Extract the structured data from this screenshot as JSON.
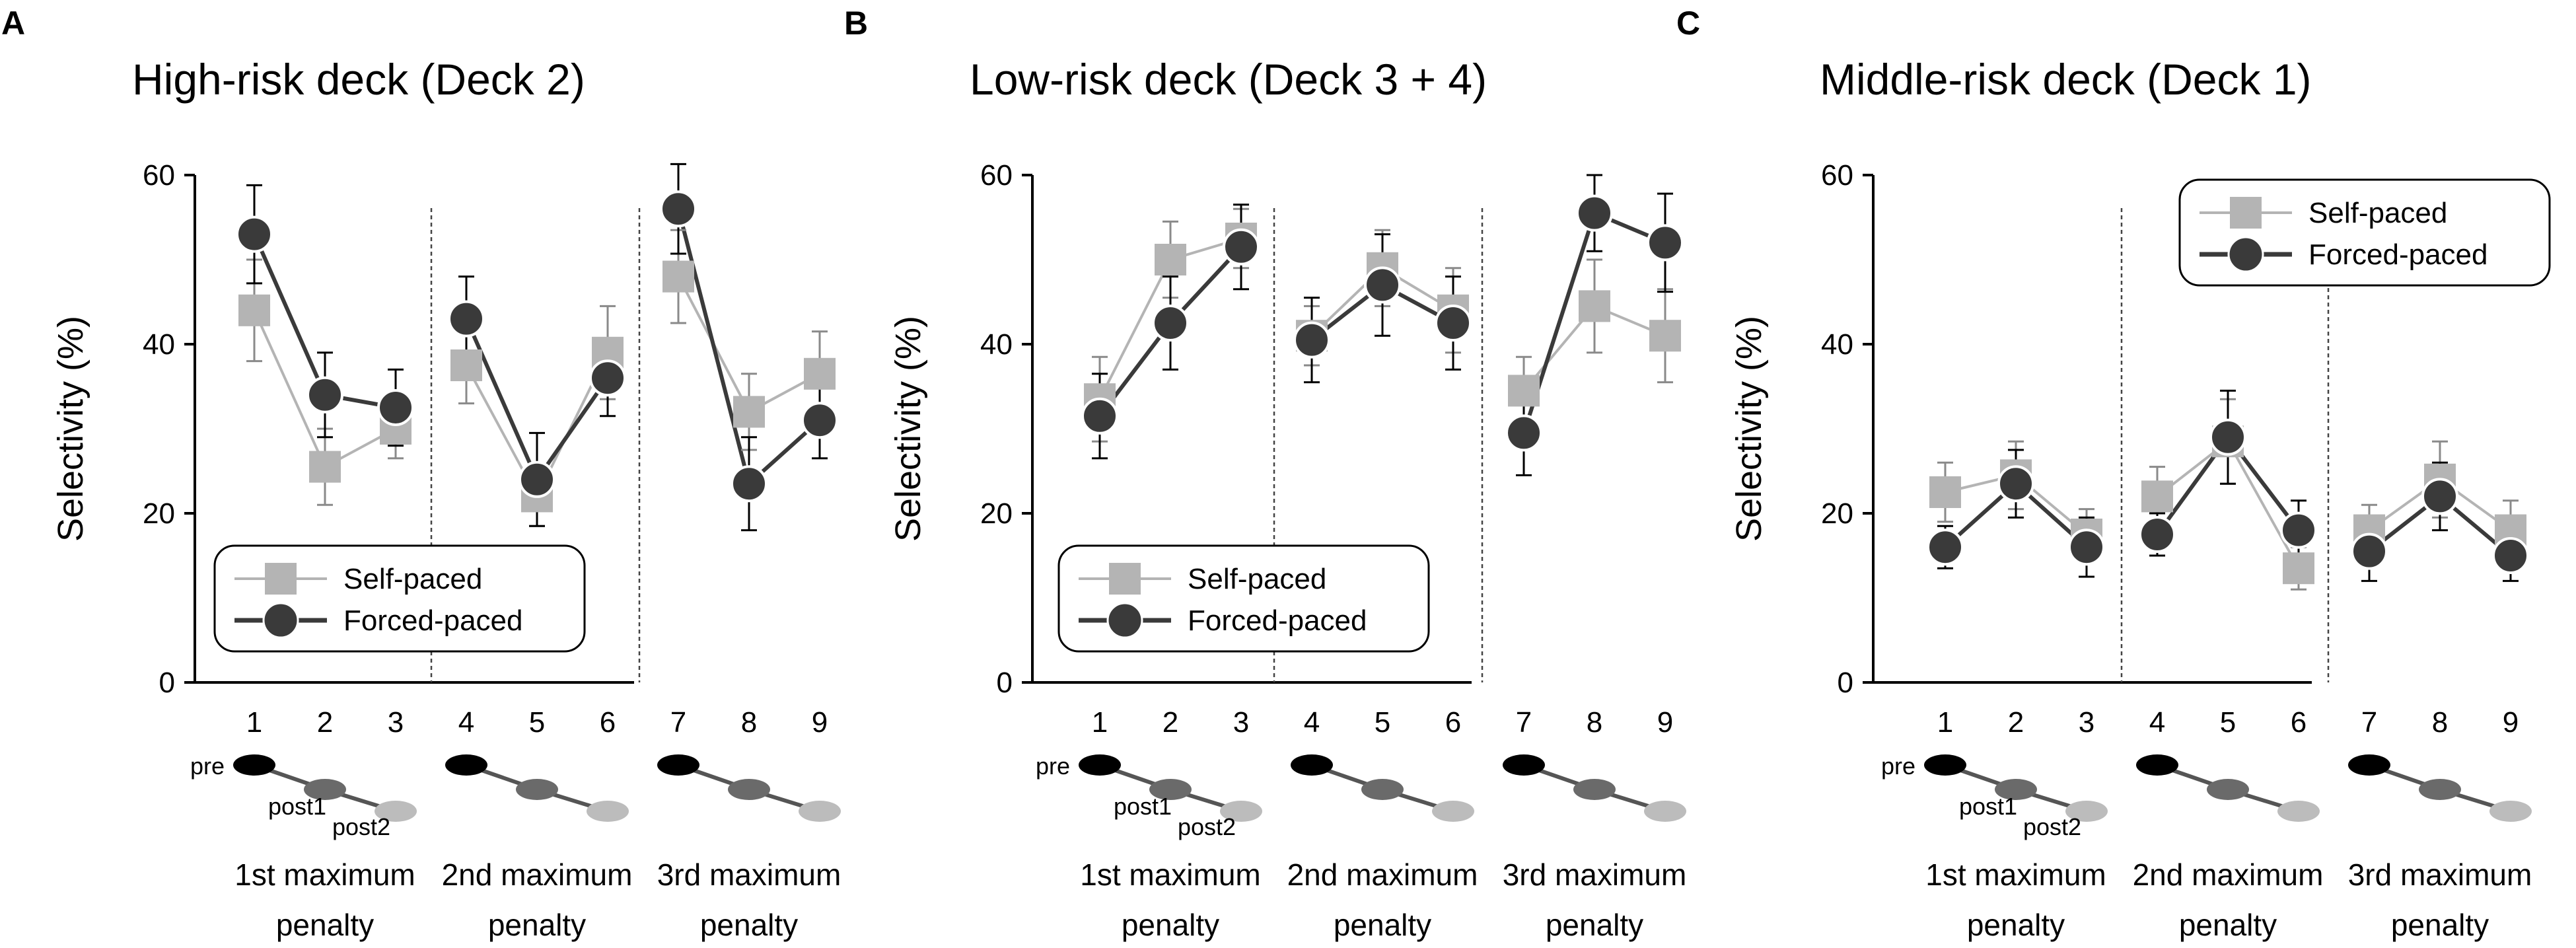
{
  "figure": {
    "xticks": [
      "1",
      "2",
      "3",
      "4",
      "5",
      "6",
      "7",
      "8",
      "9"
    ],
    "ylabel": "Selectivity (%)",
    "yticks": [
      "0",
      "20",
      "40",
      "60"
    ],
    "legend": {
      "self": "Self-paced",
      "forced": "Forced-paced"
    },
    "pre_label": "pre",
    "post1_label": "post1",
    "post2_label": "post2",
    "captions": [
      {
        "line1": "1st maximum",
        "line2": "penalty"
      },
      {
        "line1": "2nd maximum",
        "line2": "penalty"
      },
      {
        "line1": "3rd maximum",
        "line2": "penalty"
      }
    ],
    "colors": {
      "self": "#b4b4b4",
      "forced": "#3a3a3a",
      "pre": "#000000",
      "post1": "#6a6a6a",
      "post2": "#bcbcbc"
    }
  },
  "chart_data": [
    {
      "letter": "A",
      "type": "line",
      "title": "High-risk deck (Deck 2)",
      "xlabel": "",
      "ylabel": "Selectivity (%)",
      "ylim": [
        0,
        60
      ],
      "categories": [
        "1",
        "2",
        "3",
        "4",
        "5",
        "6",
        "7",
        "8",
        "9"
      ],
      "legend_position": "bottom-left",
      "series": [
        {
          "name": "Self-paced",
          "values": [
            44,
            25.5,
            30,
            37.5,
            22,
            39,
            48,
            32,
            36.5
          ],
          "errors": [
            6,
            4.5,
            3.5,
            4.5,
            3.5,
            5.5,
            5.5,
            4.5,
            5
          ]
        },
        {
          "name": "Forced-paced",
          "values": [
            53,
            34,
            32.5,
            43,
            24,
            36,
            56,
            23.5,
            31
          ],
          "errors": [
            5.8,
            5,
            4.5,
            5,
            5.5,
            4.5,
            5.3,
            5.5,
            4.5
          ]
        }
      ]
    },
    {
      "letter": "B",
      "type": "line",
      "title": "Low-risk deck (Deck 3 + 4)",
      "xlabel": "",
      "ylabel": "Selectivity (%)",
      "ylim": [
        0,
        60
      ],
      "categories": [
        "1",
        "2",
        "3",
        "4",
        "5",
        "6",
        "7",
        "8",
        "9"
      ],
      "legend_position": "bottom-left",
      "series": [
        {
          "name": "Self-paced",
          "values": [
            33.5,
            50,
            52.5,
            41,
            49,
            44,
            34.5,
            44.5,
            41
          ],
          "errors": [
            5,
            4.5,
            3.5,
            3.5,
            4.5,
            5,
            4,
            5.5,
            5.5
          ]
        },
        {
          "name": "Forced-paced",
          "values": [
            31.5,
            42.5,
            51.5,
            40.5,
            47,
            42.5,
            29.5,
            55.5,
            52
          ],
          "errors": [
            5,
            5.5,
            5,
            5,
            6,
            5.5,
            5,
            4.5,
            5.8
          ]
        }
      ]
    },
    {
      "letter": "C",
      "type": "line",
      "title": "Middle-risk deck (Deck 1)",
      "xlabel": "",
      "ylabel": "Selectivity (%)",
      "ylim": [
        0,
        60
      ],
      "categories": [
        "1",
        "2",
        "3",
        "4",
        "5",
        "6",
        "7",
        "8",
        "9"
      ],
      "legend_position": "top-right",
      "series": [
        {
          "name": "Self-paced",
          "values": [
            22.5,
            24.5,
            17.5,
            22,
            28.5,
            13.5,
            18,
            24,
            18
          ],
          "errors": [
            3.5,
            4,
            3,
            3.5,
            5,
            2.5,
            3,
            4.5,
            3.5
          ]
        },
        {
          "name": "Forced-paced",
          "values": [
            16,
            23.5,
            16,
            17.5,
            29,
            18,
            15.5,
            22,
            15
          ],
          "errors": [
            2.5,
            4,
            3.5,
            2.5,
            5.5,
            3.5,
            3.5,
            4,
            3
          ]
        }
      ]
    }
  ]
}
